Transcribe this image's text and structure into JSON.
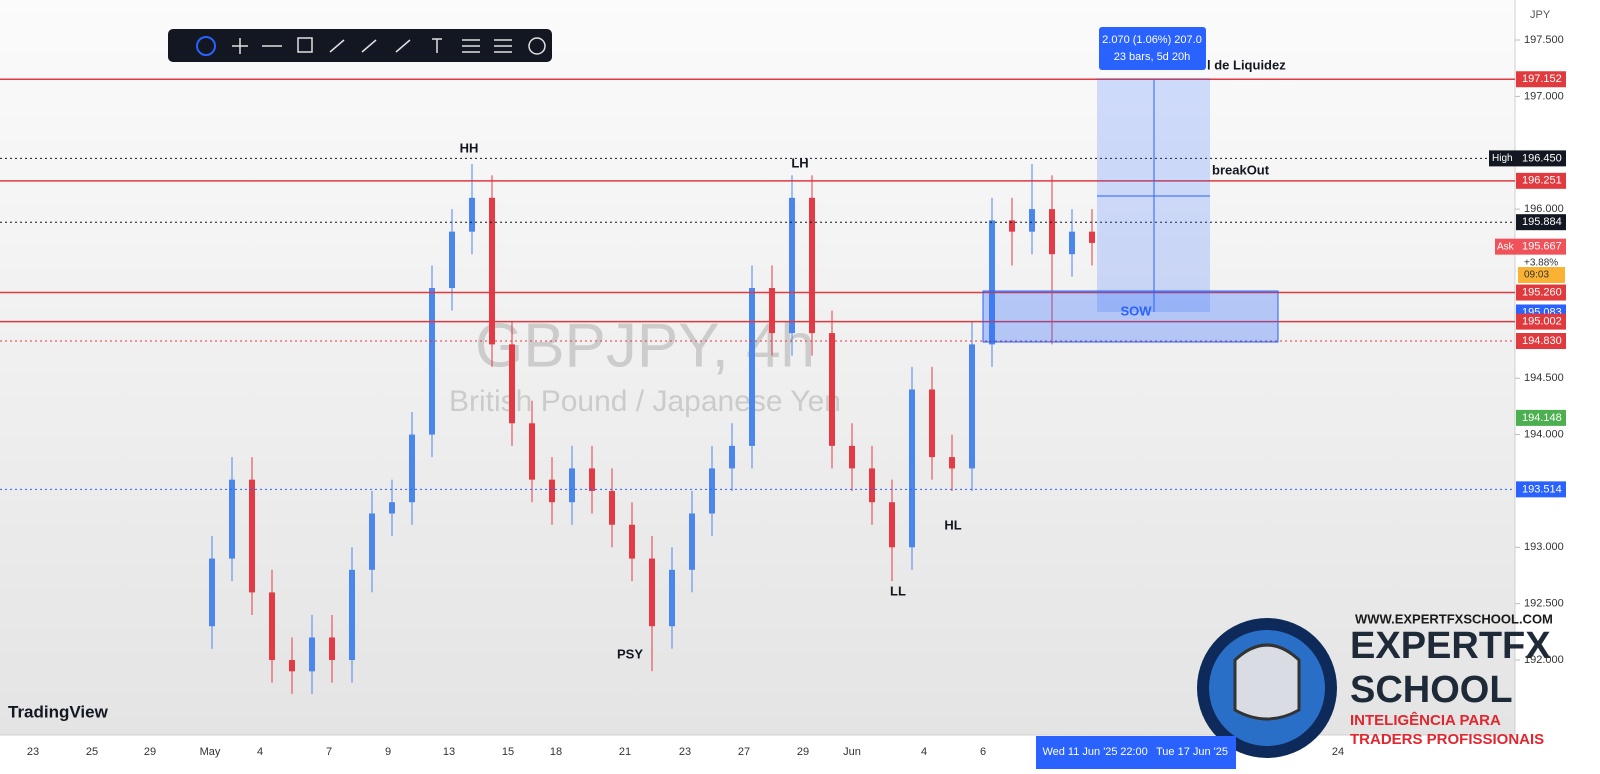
{
  "symbol": "GBPJPY, 4h",
  "description": "British Pound / Japanese Yen",
  "currency": "JPY",
  "change": "+3.88%",
  "countdown": "09:03",
  "ask_label": "Ask",
  "high_label": "High",
  "watermark_logo": "TradingView",
  "chart_data": {
    "type": "candlestick",
    "up_color": "#4a86ec",
    "down_color": "#e23b46",
    "open": [
      192.3,
      192.9,
      193.6,
      192.6,
      192.0,
      191.9,
      192.2,
      192.0,
      192.8,
      193.3,
      193.4,
      194.0,
      195.3,
      195.8,
      196.1,
      194.8,
      194.1,
      193.6,
      193.4,
      193.7,
      193.5,
      193.2,
      192.9,
      192.3,
      192.8,
      193.3,
      193.7,
      193.9,
      195.3,
      194.9,
      196.1,
      194.9,
      193.9,
      193.7,
      193.4,
      193.0,
      194.4,
      193.8,
      193.7,
      194.8,
      195.9,
      195.8,
      196.0,
      195.6,
      195.8
    ],
    "high": [
      193.1,
      193.8,
      193.8,
      192.8,
      192.2,
      192.4,
      192.4,
      193.0,
      193.5,
      193.6,
      194.2,
      195.5,
      196.0,
      196.4,
      196.3,
      195.0,
      194.3,
      193.8,
      193.9,
      193.9,
      193.7,
      193.4,
      193.1,
      193.0,
      193.5,
      193.9,
      194.1,
      195.5,
      195.5,
      196.3,
      196.3,
      195.1,
      194.1,
      193.9,
      193.6,
      194.6,
      194.6,
      194.0,
      195.0,
      196.1,
      196.1,
      196.4,
      196.3,
      196.0,
      196.0
    ],
    "low": [
      192.1,
      192.7,
      192.4,
      191.8,
      191.7,
      191.7,
      191.8,
      191.8,
      192.6,
      193.1,
      193.2,
      193.8,
      195.1,
      195.6,
      194.6,
      193.9,
      193.4,
      193.2,
      193.2,
      193.3,
      193.0,
      192.7,
      191.9,
      192.1,
      192.6,
      193.1,
      193.5,
      193.7,
      194.7,
      194.7,
      194.7,
      193.7,
      193.5,
      193.2,
      192.7,
      192.8,
      193.6,
      193.5,
      193.5,
      194.6,
      195.5,
      195.6,
      194.8,
      195.4,
      195.5
    ],
    "close": [
      192.9,
      193.6,
      192.6,
      192.0,
      191.9,
      192.2,
      192.0,
      192.8,
      193.3,
      193.4,
      194.0,
      195.3,
      195.8,
      196.1,
      194.8,
      194.1,
      193.6,
      193.4,
      193.7,
      193.5,
      193.2,
      192.9,
      192.3,
      192.8,
      193.3,
      193.7,
      193.9,
      195.3,
      194.9,
      196.1,
      194.9,
      193.9,
      193.7,
      193.4,
      193.0,
      194.4,
      193.8,
      193.7,
      194.8,
      195.9,
      195.8,
      196.0,
      195.6,
      195.8,
      195.7
    ],
    "ylim": [
      191.335,
      197.855
    ],
    "yticks": [
      {
        "value": 197.5,
        "label": "197.500"
      },
      {
        "value": 197,
        "label": "197.000"
      },
      {
        "value": 196,
        "label": "196.000"
      },
      {
        "value": 194.5,
        "label": "194.500"
      },
      {
        "value": 194,
        "label": "194.000"
      },
      {
        "value": 193,
        "label": "193.000"
      },
      {
        "value": 192.5,
        "label": "192.500"
      },
      {
        "value": 192,
        "label": "192.000"
      }
    ],
    "levels": [
      {
        "value": 197.152,
        "label": "197.152",
        "color": "#e03a3e",
        "style": "solid"
      },
      {
        "value": 196.45,
        "label": "196.450",
        "color": "#131722",
        "style": "dotted"
      },
      {
        "value": 196.251,
        "label": "196.251",
        "color": "#e03a3e",
        "style": "solid"
      },
      {
        "value": 195.884,
        "label": "195.884",
        "color": "#131722",
        "style": "dotted"
      },
      {
        "value": 195.667,
        "label": "195.667",
        "color": "#f0525a",
        "style": "none"
      },
      {
        "value": 195.26,
        "label": "195.260",
        "color": "#e03a3e",
        "style": "solid"
      },
      {
        "value": 195.083,
        "label": "195.083",
        "color": "#2962ff",
        "style": "none"
      },
      {
        "value": 195.002,
        "label": "195.002",
        "color": "#e03a3e",
        "style": "solid"
      },
      {
        "value": 194.83,
        "label": "194.830",
        "color": "#e03a3e",
        "style": "dotted"
      },
      {
        "value": 194.148,
        "label": "194.148",
        "color": "#4caf50",
        "style": "none"
      },
      {
        "value": 193.514,
        "label": "193.514",
        "color": "#2962ff",
        "style": "dotted"
      }
    ],
    "x_labels": [
      "23",
      "25",
      "29",
      "May",
      "4",
      "7",
      "9",
      "13",
      "15",
      "18",
      "21",
      "23",
      "27",
      "29",
      "Jun",
      "4",
      "6",
      "Wed 11 Jun '25",
      "22:00",
      "Tue 17 Jun '25",
      "24"
    ],
    "annotations": [
      "HH",
      "LH",
      "HL",
      "LL",
      "PSY",
      "SOW",
      "breakOut",
      "l de Liquidez"
    ],
    "measure": {
      "line1": "2.070 (1.06%) 207.0",
      "line2": "23 bars, 5d 20h"
    }
  },
  "brand": {
    "url": "WWW.EXPERTFXSCHOOL.COM",
    "name1": "EXPERTFX",
    "name2": "SCHOOL",
    "tag1": "INTELIGÊNCIA PARA",
    "tag2": "TRADERS PROFISSIONAIS"
  }
}
